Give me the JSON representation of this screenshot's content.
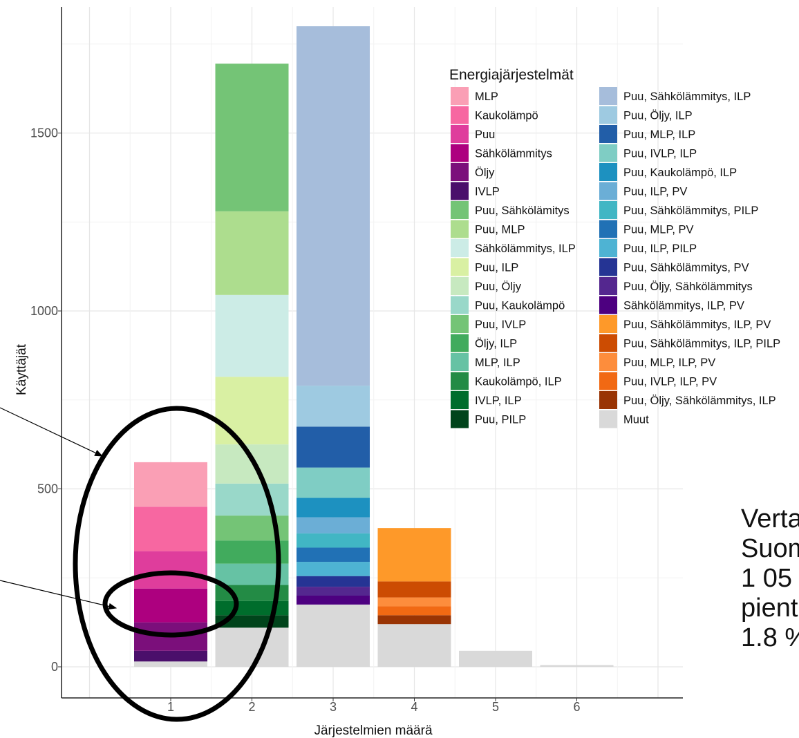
{
  "chart_data": {
    "type": "bar",
    "stacked": true,
    "xlabel": "Järjestelmien määrä",
    "ylabel": "Käyttäjät",
    "categories": [
      "1",
      "2",
      "3",
      "4",
      "5",
      "6"
    ],
    "y_ticks": [
      0,
      500,
      1000,
      1500
    ],
    "ylim": [
      -100,
      1850
    ],
    "grid": true,
    "legend_title": "Energiajärjestelmät",
    "legend_position": "right-top",
    "series": [
      {
        "name": "Muut",
        "color": "#d9d9d9",
        "values": [
          15,
          110,
          175,
          120,
          45,
          5
        ]
      },
      {
        "name": "IVLP",
        "color": "#4a0f6b",
        "values": [
          30,
          0,
          0,
          0,
          0,
          0
        ]
      },
      {
        "name": "Öljy",
        "color": "#7b0f7b",
        "values": [
          80,
          0,
          0,
          0,
          0,
          0
        ]
      },
      {
        "name": "Sähkölämmitys",
        "color": "#ad007f",
        "values": [
          95,
          0,
          0,
          0,
          0,
          0
        ]
      },
      {
        "name": "Puu",
        "color": "#df3d9c",
        "values": [
          105,
          0,
          0,
          0,
          0,
          0
        ]
      },
      {
        "name": "Kaukolämpö",
        "color": "#f767a1",
        "values": [
          125,
          0,
          0,
          0,
          0,
          0
        ]
      },
      {
        "name": "MLP",
        "color": "#fa9fb5",
        "values": [
          125,
          0,
          0,
          0,
          0,
          0
        ]
      },
      {
        "name": "Puu, PILP",
        "color": "#00441b",
        "values": [
          0,
          35,
          0,
          0,
          0,
          0
        ]
      },
      {
        "name": "IVLP, ILP",
        "color": "#006d2c",
        "values": [
          0,
          40,
          0,
          0,
          0,
          0
        ]
      },
      {
        "name": "Kaukolämpö, ILP",
        "color": "#238b45",
        "values": [
          0,
          45,
          0,
          0,
          0,
          0
        ]
      },
      {
        "name": "MLP, ILP",
        "color": "#66c2a4",
        "values": [
          0,
          60,
          0,
          0,
          0,
          0
        ]
      },
      {
        "name": "Öljy, ILP",
        "color": "#41ab5d",
        "values": [
          0,
          65,
          0,
          0,
          0,
          0
        ]
      },
      {
        "name": "Puu, IVLP",
        "color": "#74c476",
        "values": [
          0,
          70,
          0,
          0,
          0,
          0
        ]
      },
      {
        "name": "Puu, Kaukolämpö",
        "color": "#99d8c9",
        "values": [
          0,
          90,
          0,
          0,
          0,
          0
        ]
      },
      {
        "name": "Puu, Öljy",
        "color": "#c7e9c0",
        "values": [
          0,
          110,
          0,
          0,
          0,
          0
        ]
      },
      {
        "name": "Puu, ILP",
        "color": "#d9f0a3",
        "values": [
          0,
          190,
          0,
          0,
          0,
          0
        ]
      },
      {
        "name": "Sähkölämmitys, ILP",
        "color": "#ccece6",
        "values": [
          0,
          230,
          0,
          0,
          0,
          0
        ]
      },
      {
        "name": "Puu, MLP",
        "color": "#addd8e",
        "values": [
          0,
          235,
          0,
          0,
          0,
          0
        ]
      },
      {
        "name": "Puu, Sähkölämitys",
        "color": "#74c476",
        "values": [
          0,
          415,
          0,
          0,
          0,
          0
        ]
      },
      {
        "name": "Sähkölämmitys, ILP, PV",
        "color": "#4d0080",
        "values": [
          0,
          0,
          25,
          0,
          0,
          0
        ]
      },
      {
        "name": "Puu, Öljy, Sähkölämmitys",
        "color": "#54278f",
        "values": [
          0,
          0,
          25,
          0,
          0,
          0
        ]
      },
      {
        "name": "Puu, Sähkölämmitys, PV",
        "color": "#253494",
        "values": [
          0,
          0,
          30,
          0,
          0,
          0
        ]
      },
      {
        "name": "Puu, ILP, PILP",
        "color": "#4eb3d3",
        "values": [
          0,
          0,
          40,
          0,
          0,
          0
        ]
      },
      {
        "name": "Puu, MLP, PV",
        "color": "#2171b5",
        "values": [
          0,
          0,
          40,
          0,
          0,
          0
        ]
      },
      {
        "name": "Puu, Sähkölämmitys, PILP",
        "color": "#41b6c4",
        "values": [
          0,
          0,
          40,
          0,
          0,
          0
        ]
      },
      {
        "name": "Puu, ILP, PV",
        "color": "#6baed6",
        "values": [
          0,
          0,
          45,
          0,
          0,
          0
        ]
      },
      {
        "name": "Puu, Kaukolämpö, ILP",
        "color": "#1d91c0",
        "values": [
          0,
          0,
          55,
          0,
          0,
          0
        ]
      },
      {
        "name": "Puu, IVLP, ILP",
        "color": "#7fcdc4",
        "values": [
          0,
          0,
          85,
          0,
          0,
          0
        ]
      },
      {
        "name": "Puu, MLP, ILP",
        "color": "#225ea8",
        "values": [
          0,
          0,
          115,
          0,
          0,
          0
        ]
      },
      {
        "name": "Puu, Öljy, ILP",
        "color": "#9ecae1",
        "values": [
          0,
          0,
          115,
          0,
          0,
          0
        ]
      },
      {
        "name": "Puu, Sähkölämmitys, ILP",
        "color": "#a6bddb",
        "values": [
          0,
          0,
          1010,
          0,
          0,
          0
        ]
      },
      {
        "name": "Puu, Öljy, Sähkölämmitys, ILP",
        "color": "#993404",
        "values": [
          0,
          0,
          0,
          25,
          0,
          0
        ]
      },
      {
        "name": "Puu, IVLP, ILP, PV",
        "color": "#f16913",
        "values": [
          0,
          0,
          0,
          25,
          0,
          0
        ]
      },
      {
        "name": "Puu, MLP, ILP, PV",
        "color": "#fd8d3c",
        "values": [
          0,
          0,
          0,
          25,
          0,
          0
        ]
      },
      {
        "name": "Puu, Sähkölämmitys, ILP, PILP",
        "color": "#cc4c02",
        "values": [
          0,
          0,
          0,
          45,
          0,
          0
        ]
      },
      {
        "name": "Puu, Sähkölämmitys, ILP, PV",
        "color": "#fe9929",
        "values": [
          0,
          0,
          0,
          150,
          0,
          0
        ]
      }
    ],
    "legend_columns": [
      [
        "MLP",
        "Kaukolämpö",
        "Puu",
        "Sähkölämmitys",
        "Öljy",
        "IVLP",
        "Puu, Sähkölämitys",
        "Puu, MLP",
        "Sähkölämmitys, ILP",
        "Puu, ILP",
        "Puu, Öljy",
        "Puu, Kaukolämpö",
        "Puu, IVLP",
        "Öljy, ILP",
        "MLP, ILP",
        "Kaukolämpö, ILP",
        "IVLP, ILP",
        "Puu, PILP"
      ],
      [
        "Puu, Sähkölämmitys, ILP",
        "Puu, Öljy, ILP",
        "Puu, MLP, ILP",
        "Puu, IVLP, ILP",
        "Puu, Kaukolämpö, ILP",
        "Puu, ILP, PV",
        "Puu, Sähkölämmitys, PILP",
        "Puu, MLP, PV",
        "Puu, ILP, PILP",
        "Puu, Sähkölämmitys, PV",
        "Puu, Öljy, Sähkölämmitys",
        "Sähkölämmitys, ILP, PV",
        "Puu, Sähkölämmitys, ILP, PV",
        "Puu, Sähkölämmitys, ILP, PILP",
        "Puu, MLP, ILP, PV",
        "Puu, IVLP, ILP, PV",
        "Puu, Öljy, Sähkölämmitys, ILP",
        "Muut"
      ]
    ]
  },
  "side_note": {
    "lines": [
      "Verta",
      "Suom",
      "1 05",
      "pient",
      "1.8 %"
    ]
  }
}
